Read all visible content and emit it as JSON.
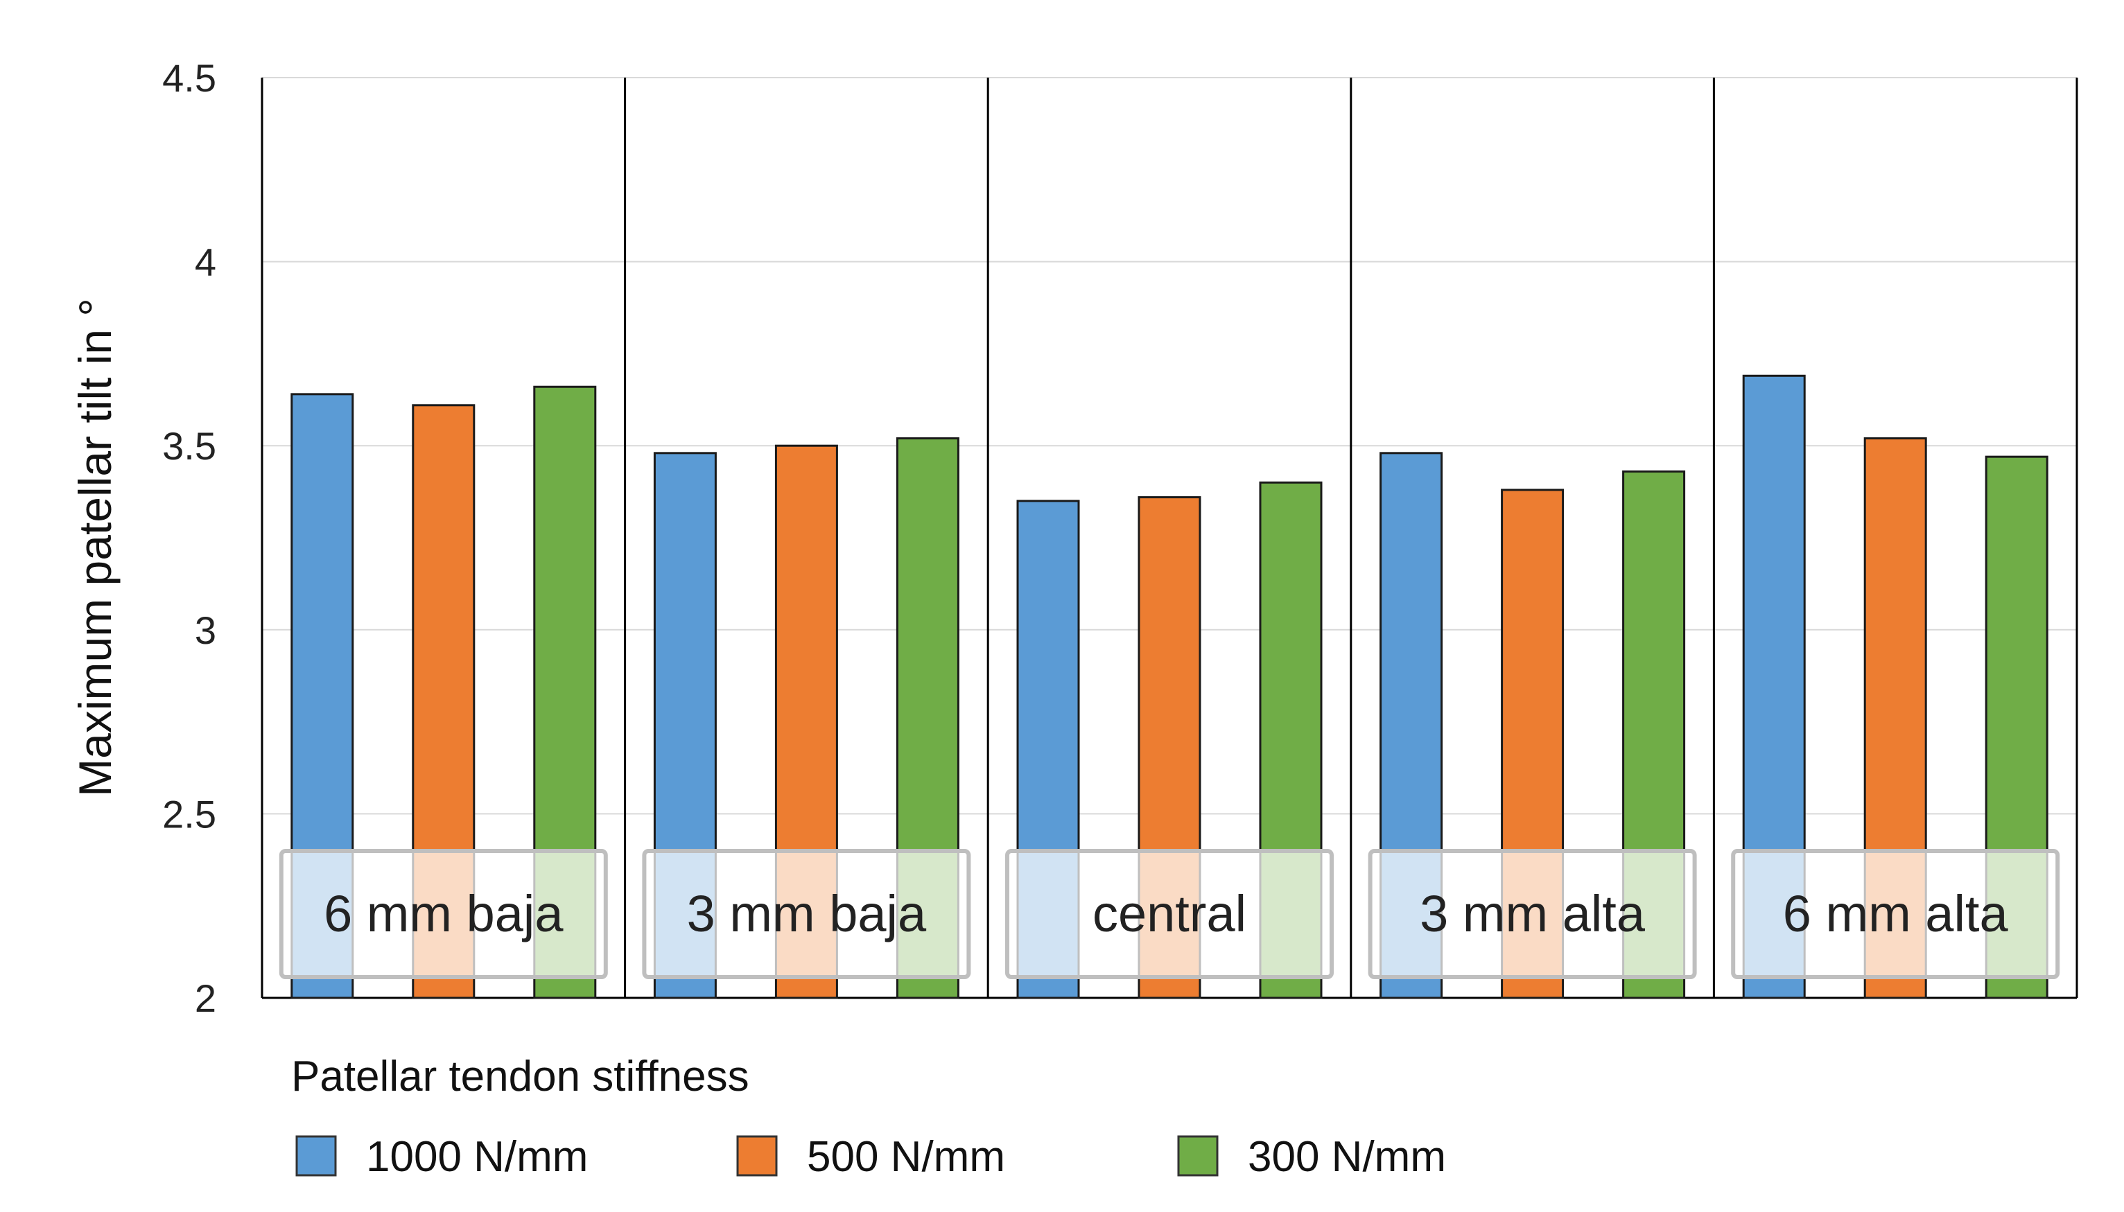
{
  "chart_data": {
    "type": "bar",
    "title": "",
    "xlabel": "",
    "ylabel": "Maximum patellar tilt in °",
    "ylim": [
      2,
      4.5
    ],
    "yticks": [
      "2",
      "2.5",
      "3",
      "3.5",
      "4",
      "4.5"
    ],
    "grid": true,
    "categories": [
      "6 mm baja",
      "3 mm baja",
      "central",
      "3 mm alta",
      "6 mm alta"
    ],
    "legend_title": "Patellar tendon stiffness",
    "legend_position": "bottom",
    "series": [
      {
        "name": "1000 N/mm",
        "color": "#5b9bd5",
        "values": [
          3.64,
          3.48,
          3.35,
          3.48,
          3.69
        ]
      },
      {
        "name": "500 N/mm",
        "color": "#ed7d31",
        "values": [
          3.61,
          3.5,
          3.36,
          3.38,
          3.52
        ]
      },
      {
        "name": "300 N/mm",
        "color": "#70ad47",
        "values": [
          3.66,
          3.52,
          3.4,
          3.43,
          3.47
        ]
      }
    ]
  }
}
